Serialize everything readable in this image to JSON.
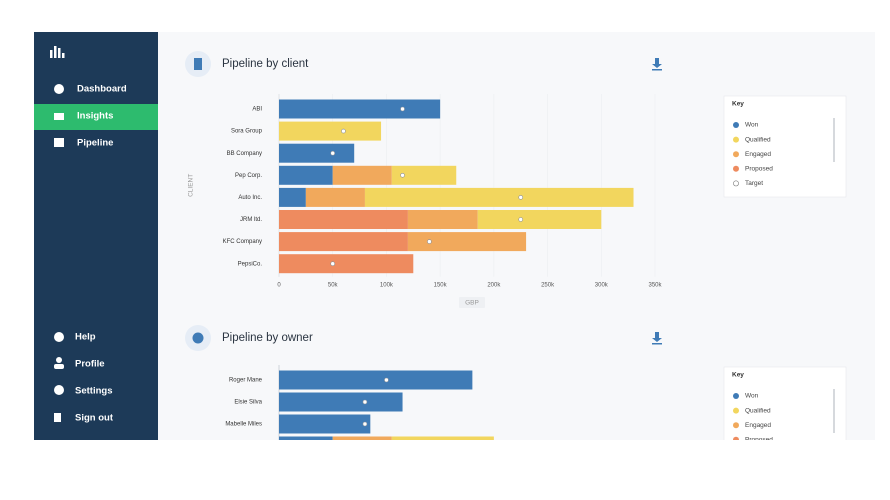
{
  "sidebar": {
    "nav": [
      "Dashboard",
      "Insights",
      "Pipeline"
    ],
    "active": 1,
    "footer_nav": [
      "Help",
      "Profile",
      "Settings",
      "Sign out"
    ]
  },
  "sections": [
    {
      "title": "Pipeline by client",
      "chart": {
        "type": "bar",
        "orientation": "horizontal",
        "stacked": true,
        "categories": [
          "ABI",
          "Sora Group",
          "BB Company",
          "Pep Corp.",
          "Auto Inc.",
          "JRM ltd.",
          "KFC Company",
          "PepsiCo."
        ],
        "series": [
          {
            "name": "Won",
            "color": "#3f7bb6",
            "values": [
              150000,
              null,
              70000,
              50000,
              25000,
              null,
              null,
              null
            ]
          },
          {
            "name": "Qualified",
            "color": "#f2d65e",
            "values": [
              null,
              95000,
              null,
              60000,
              250000,
              115000,
              null,
              null
            ]
          },
          {
            "name": "Engaged",
            "color": "#f1a95c",
            "values": [
              null,
              null,
              null,
              55000,
              55000,
              65000,
              110000,
              null
            ]
          },
          {
            "name": "Proposed",
            "color": "#ee8b5f",
            "values": [
              null,
              null,
              null,
              null,
              null,
              120000,
              120000,
              125000
            ]
          }
        ],
        "stack_order": [
          0,
          3,
          2,
          1
        ],
        "targets": {
          "name": "Target",
          "values": [
            115000,
            60000,
            50000,
            115000,
            225000,
            225000,
            140000,
            50000
          ]
        },
        "xlim": [
          0,
          350000
        ],
        "xticks": [
          0,
          {
            "value": 50000,
            "label": "50k"
          },
          {
            "value": 100000,
            "label": "100k"
          },
          {
            "value": 150000,
            "label": "150k"
          },
          {
            "value": 200000,
            "label": "200k"
          },
          {
            "value": 250000,
            "label": "250k"
          },
          {
            "value": 300000,
            "label": "300k"
          },
          {
            "value": 350000,
            "label": "350k"
          }
        ],
        "xlabel": "GBP",
        "ylabel": "CLIENT",
        "legend_title": "Key"
      }
    },
    {
      "title": "Pipeline by owner",
      "chart": {
        "type": "bar",
        "orientation": "horizontal",
        "stacked": true,
        "categories": [
          "Roger Mane",
          "Elsie Silva",
          "Mabelle Miles",
          null
        ],
        "series": [
          {
            "name": "Won",
            "color": "#3f7bb6",
            "values": [
              180000,
              115000,
              85000,
              50000
            ]
          },
          {
            "name": "Qualified",
            "color": "#f2d65e",
            "values": [
              null,
              null,
              null,
              95000
            ]
          },
          {
            "name": "Engaged",
            "color": "#f1a95c",
            "values": [
              null,
              null,
              null,
              55000
            ]
          },
          {
            "name": "Proposed",
            "color": "#ee8b5f",
            "values": [
              null,
              null,
              null,
              null
            ]
          }
        ],
        "stack_order": [
          0,
          3,
          2,
          1
        ],
        "targets": {
          "values": [
            100000,
            80000,
            80000,
            null
          ]
        },
        "xlim": [
          0,
          350000
        ],
        "legend_title": "Key"
      }
    }
  ]
}
